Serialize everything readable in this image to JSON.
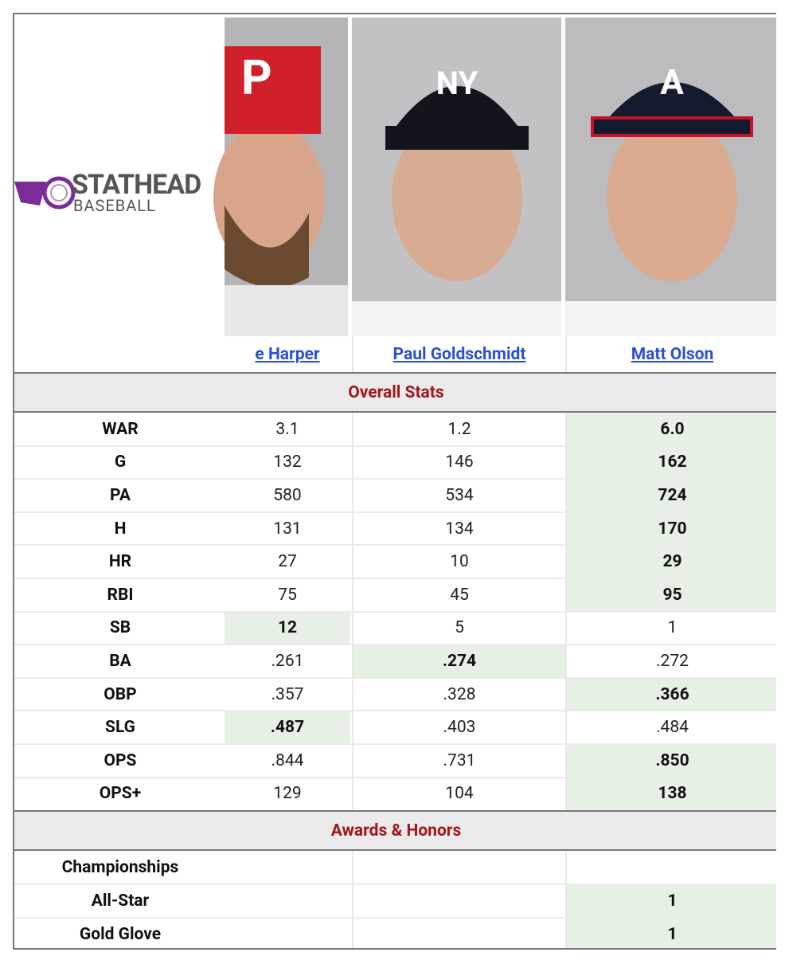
{
  "logo": {
    "name": "STATHEAD",
    "sub": "BASEBALL"
  },
  "players": [
    "e Harper",
    "Paul Goldschmidt",
    "Matt Olson"
  ],
  "sections": [
    {
      "title": "Overall Stats",
      "rows": [
        {
          "label": "WAR",
          "values": [
            "3.1",
            "1.2",
            "6.0"
          ],
          "best": 2
        },
        {
          "label": "G",
          "values": [
            "132",
            "146",
            "162"
          ],
          "best": 2
        },
        {
          "label": "PA",
          "values": [
            "580",
            "534",
            "724"
          ],
          "best": 2
        },
        {
          "label": "H",
          "values": [
            "131",
            "134",
            "170"
          ],
          "best": 2
        },
        {
          "label": "HR",
          "values": [
            "27",
            "10",
            "29"
          ],
          "best": 2
        },
        {
          "label": "RBI",
          "values": [
            "75",
            "45",
            "95"
          ],
          "best": 2
        },
        {
          "label": "SB",
          "values": [
            "12",
            "5",
            "1"
          ],
          "best": 0
        },
        {
          "label": "BA",
          "values": [
            ".261",
            ".274",
            ".272"
          ],
          "best": 1
        },
        {
          "label": "OBP",
          "values": [
            ".357",
            ".328",
            ".366"
          ],
          "best": 2
        },
        {
          "label": "SLG",
          "values": [
            ".487",
            ".403",
            ".484"
          ],
          "best": 0
        },
        {
          "label": "OPS",
          "values": [
            ".844",
            ".731",
            ".850"
          ],
          "best": 2
        },
        {
          "label": "OPS+",
          "values": [
            "129",
            "104",
            "138"
          ],
          "best": 2
        }
      ]
    },
    {
      "title": "Awards & Honors",
      "rows": [
        {
          "label": "Championships",
          "values": [
            null,
            null,
            null
          ],
          "best": null
        },
        {
          "label": "All-Star",
          "values": [
            null,
            null,
            "1"
          ],
          "best": 2
        },
        {
          "label": "Gold Glove",
          "values": [
            null,
            null,
            "1"
          ],
          "best": 2
        }
      ]
    }
  ]
}
